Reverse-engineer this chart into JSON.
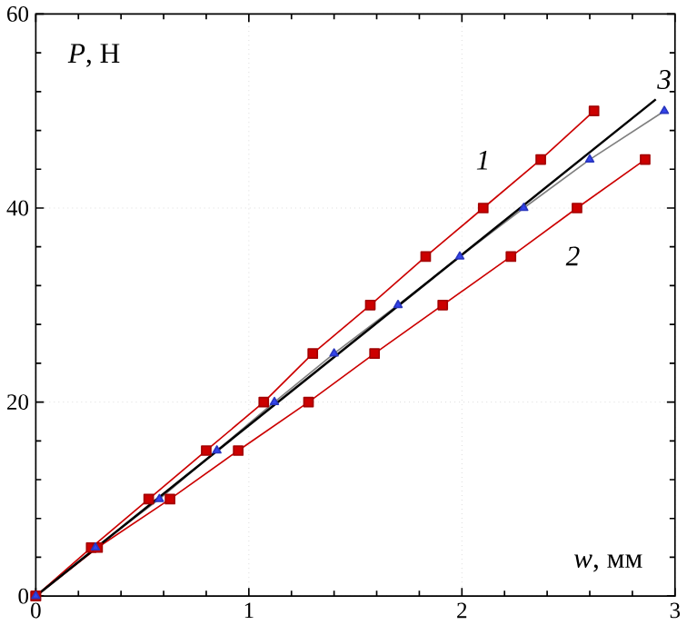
{
  "chart_data": {
    "type": "line",
    "xlabel": "*w*, мм",
    "ylabel": "*P*, Н",
    "xlim": [
      0,
      3
    ],
    "ylim": [
      0,
      60
    ],
    "xticks": [
      0,
      1,
      2,
      3
    ],
    "yticks": [
      0,
      20,
      40,
      60
    ],
    "grid": true,
    "legend": false,
    "series": [
      {
        "name": "1",
        "color": "#cc0000",
        "marker": "square",
        "x": [
          0,
          0.26,
          0.53,
          0.8,
          1.07,
          1.3,
          1.57,
          1.83,
          2.1,
          2.37,
          2.62
        ],
        "values": [
          0,
          5,
          10,
          15,
          20,
          25,
          30,
          35,
          40,
          45,
          50
        ]
      },
      {
        "name": "2",
        "color": "#cc0000",
        "marker": "square",
        "x": [
          0,
          0.29,
          0.63,
          0.95,
          1.28,
          1.59,
          1.91,
          2.23,
          2.54,
          2.86
        ],
        "values": [
          0,
          5,
          10,
          15,
          20,
          25,
          30,
          35,
          40,
          45
        ]
      },
      {
        "name": "3",
        "color": "#3344ee",
        "marker": "triangle",
        "x": [
          0,
          0.28,
          0.58,
          0.85,
          1.12,
          1.4,
          1.7,
          1.99,
          2.29,
          2.6,
          2.95
        ],
        "values": [
          0,
          5,
          10,
          15,
          20,
          25,
          30,
          35,
          40,
          45,
          50
        ]
      },
      {
        "color": "#000000",
        "marker": "none",
        "x": [
          0,
          2.91
        ],
        "values": [
          0,
          51.2
        ]
      }
    ]
  }
}
